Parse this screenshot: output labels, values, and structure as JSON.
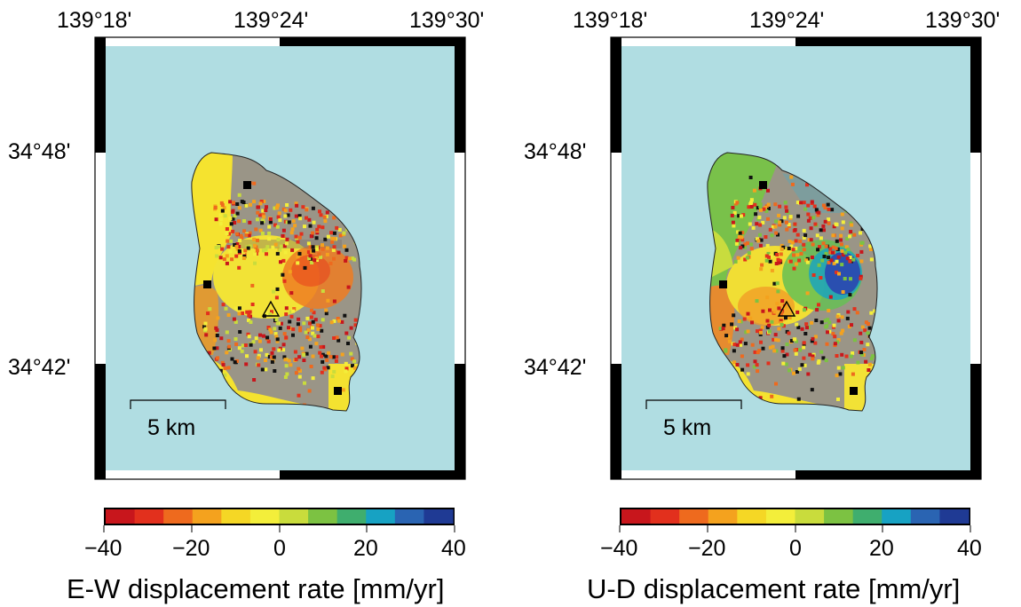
{
  "map_panels": [
    {
      "component": "E-W",
      "lon_labels": [
        "139°18'",
        "139°24'",
        "139°30'"
      ],
      "lat_labels": [
        "34°48'",
        "34°42'"
      ],
      "scale_bar": "5 km",
      "colorbar": {
        "title": "E-W displacement rate [mm/yr]",
        "ticks": [
          "−40",
          "−20",
          "0",
          "20",
          "40"
        ],
        "range": [
          -40,
          40
        ]
      },
      "markers": {
        "volcano": "triangle-icon",
        "gnss_station": "square-icon"
      }
    },
    {
      "component": "U-D",
      "lon_labels": [
        "139°18'",
        "139°24'",
        "139°30'"
      ],
      "lat_labels": [
        "34°48'",
        "34°42'"
      ],
      "scale_bar": "5 km",
      "colorbar": {
        "title": "U-D displacement rate [mm/yr]",
        "ticks": [
          "−40",
          "−20",
          "0",
          "20",
          "40"
        ],
        "range": [
          -40,
          40
        ]
      },
      "markers": {
        "volcano": "triangle-icon",
        "gnss_station": "square-icon"
      }
    }
  ],
  "colors": {
    "ocean": "#b0dde2",
    "incoherent": "#9a9587",
    "scale": [
      "#c8161c",
      "#e2301d",
      "#ee6a1e",
      "#f4a21e",
      "#f5d725",
      "#f3ee3a",
      "#c9dc3c",
      "#7cc242",
      "#3fae6e",
      "#17a2c3",
      "#2a64b2",
      "#1f3a94"
    ]
  }
}
